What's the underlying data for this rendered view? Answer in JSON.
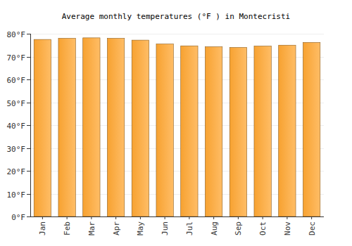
{
  "chart_data": {
    "type": "bar",
    "title": "Average monthly temperatures (°F ) in Montecristi",
    "categories": [
      "Jan",
      "Feb",
      "Mar",
      "Apr",
      "May",
      "Jun",
      "Jul",
      "Aug",
      "Sep",
      "Oct",
      "Nov",
      "Dec"
    ],
    "values": [
      77.5,
      78,
      78.2,
      78,
      77.2,
      75.5,
      74.7,
      74.3,
      74,
      74.6,
      75,
      76.2
    ],
    "color": "#ffa733",
    "ylim": [
      0,
      80
    ],
    "yticks": [
      {
        "value": 0,
        "label": "0°F"
      },
      {
        "value": 10,
        "label": "10°F"
      },
      {
        "value": 20,
        "label": "20°F"
      },
      {
        "value": 30,
        "label": "30°F"
      },
      {
        "value": 40,
        "label": "40°F"
      },
      {
        "value": 50,
        "label": "50°F"
      },
      {
        "value": 60,
        "label": "60°F"
      },
      {
        "value": 70,
        "label": "70°F"
      },
      {
        "value": 80,
        "label": "80°F"
      }
    ],
    "grid": true
  }
}
